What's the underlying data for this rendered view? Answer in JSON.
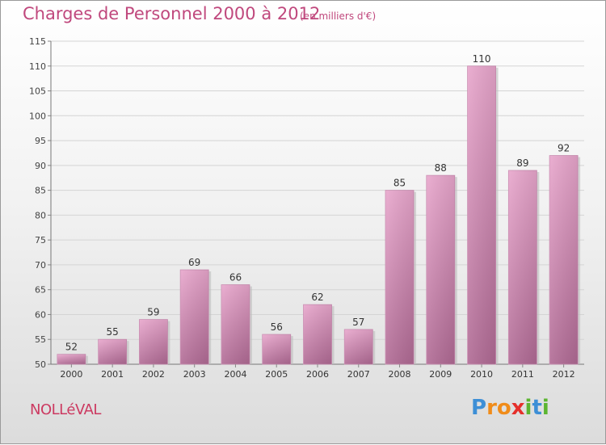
{
  "title": "Charges de Personnel 2000 à 2012",
  "subtitle": "(en milliers d'€)",
  "place": "NOLLéVAL",
  "logo": {
    "text": "Proxiti",
    "letters": [
      {
        "ch": "P",
        "color": "#3d8fd6"
      },
      {
        "ch": "r",
        "color": "#f08c1a"
      },
      {
        "ch": "o",
        "color": "#f08c1a"
      },
      {
        "ch": "x",
        "color": "#e5302b"
      },
      {
        "ch": "i",
        "color": "#5cb531"
      },
      {
        "ch": "t",
        "color": "#3d8fd6"
      },
      {
        "ch": "i",
        "color": "#5cb531"
      }
    ]
  },
  "chart_data": {
    "type": "bar",
    "categories": [
      "2000",
      "2001",
      "2002",
      "2003",
      "2004",
      "2005",
      "2006",
      "2007",
      "2008",
      "2009",
      "2010",
      "2011",
      "2012"
    ],
    "values": [
      52,
      55,
      59,
      69,
      66,
      56,
      62,
      57,
      85,
      88,
      110,
      89,
      92
    ],
    "yticks": [
      50,
      55,
      60,
      65,
      70,
      75,
      80,
      85,
      90,
      95,
      100,
      105,
      110,
      115
    ],
    "ylim": [
      50,
      115
    ],
    "grid": true,
    "bar_color": "#d98fb8"
  }
}
